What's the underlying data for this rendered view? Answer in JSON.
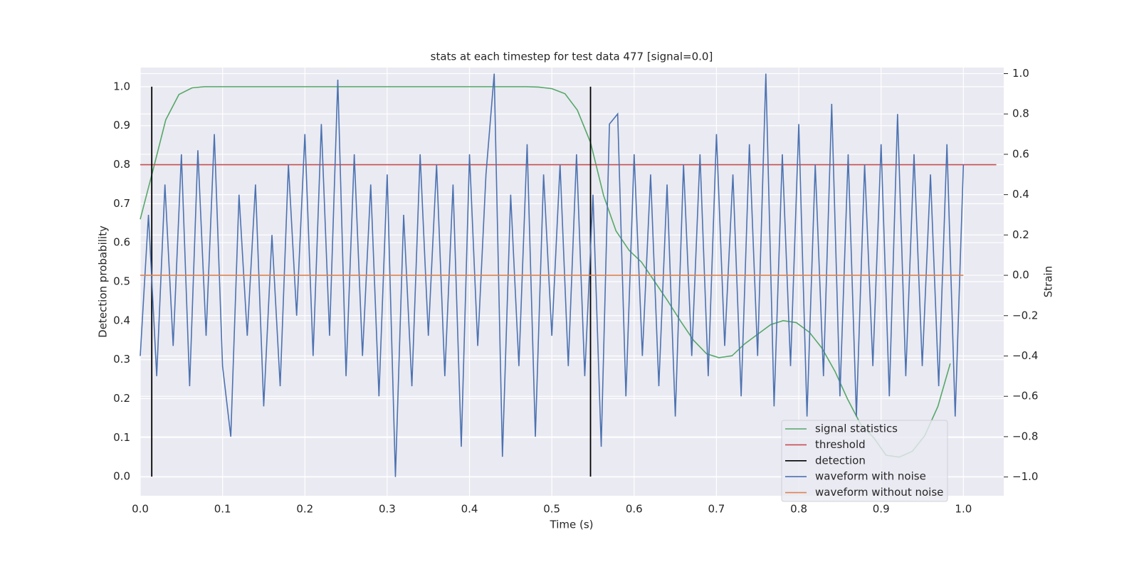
{
  "chart_data": {
    "type": "line",
    "title": "stats at each timestep for test data 477 [signal=0.0]",
    "xlabel": "Time (s)",
    "ylabel": "Detection probability",
    "y2label": "Strain",
    "xlim": [
      0,
      1.049
    ],
    "ylim": [
      -0.049,
      1.049
    ],
    "y2lim": [
      -1.093,
      1.03
    ],
    "xticks": [
      {
        "value": 0,
        "label": "0.0"
      },
      {
        "value": 0.1,
        "label": "0.1"
      },
      {
        "value": 0.2,
        "label": "0.2"
      },
      {
        "value": 0.3,
        "label": "0.3"
      },
      {
        "value": 0.4,
        "label": "0.4"
      },
      {
        "value": 0.5,
        "label": "0.5"
      },
      {
        "value": 0.6,
        "label": "0.6"
      },
      {
        "value": 0.7,
        "label": "0.7"
      },
      {
        "value": 0.8,
        "label": "0.8"
      },
      {
        "value": 0.9,
        "label": "0.9"
      },
      {
        "value": 1,
        "label": "1.0"
      }
    ],
    "yticks": [
      {
        "value": 0,
        "label": "0.0"
      },
      {
        "value": 0.1,
        "label": "0.1"
      },
      {
        "value": 0.2,
        "label": "0.2"
      },
      {
        "value": 0.3,
        "label": "0.3"
      },
      {
        "value": 0.4,
        "label": "0.4"
      },
      {
        "value": 0.5,
        "label": "0.5"
      },
      {
        "value": 0.6,
        "label": "0.6"
      },
      {
        "value": 0.7,
        "label": "0.7"
      },
      {
        "value": 0.8,
        "label": "0.8"
      },
      {
        "value": 0.9,
        "label": "0.9"
      },
      {
        "value": 1,
        "label": "1.0"
      }
    ],
    "y2ticks": [
      {
        "value": -1,
        "label": "−1.0"
      },
      {
        "value": -0.8,
        "label": "−0.8"
      },
      {
        "value": -0.6,
        "label": "−0.6"
      },
      {
        "value": -0.4,
        "label": "−0.4"
      },
      {
        "value": -0.2,
        "label": "−0.2"
      },
      {
        "value": 0,
        "label": "0.0"
      },
      {
        "value": 0.2,
        "label": "0.2"
      },
      {
        "value": 0.4,
        "label": "0.4"
      },
      {
        "value": 0.6,
        "label": "0.6"
      },
      {
        "value": 0.8,
        "label": "0.8"
      },
      {
        "value": 1,
        "label": "1.0"
      }
    ],
    "grid": true,
    "legend": "lower right",
    "series": [
      {
        "name": "signal statistics",
        "color": "#55a868",
        "x": [
          0,
          0.016,
          0.031,
          0.047,
          0.063,
          0.078,
          0.2,
          0.3,
          0.4,
          0.469,
          0.484,
          0.5,
          0.516,
          0.531,
          0.547,
          0.563,
          0.578,
          0.594,
          0.609,
          0.625,
          0.641,
          0.656,
          0.672,
          0.688,
          0.703,
          0.719,
          0.734,
          0.75,
          0.766,
          0.781,
          0.797,
          0.813,
          0.828,
          0.844,
          0.859,
          0.875,
          0.891,
          0.906,
          0.922,
          0.938,
          0.953,
          0.969,
          0.984
        ],
        "values": [
          0.66,
          0.79,
          0.915,
          0.98,
          0.997,
          1.0,
          1.0,
          1.0,
          1.0,
          1.0,
          0.999,
          0.995,
          0.982,
          0.94,
          0.857,
          0.72,
          0.63,
          0.58,
          0.55,
          0.5,
          0.45,
          0.4,
          0.35,
          0.315,
          0.305,
          0.31,
          0.34,
          0.365,
          0.39,
          0.4,
          0.395,
          0.37,
          0.33,
          0.27,
          0.2,
          0.135,
          0.1,
          0.055,
          0.05,
          0.065,
          0.105,
          0.18,
          0.29
        ]
      },
      {
        "name": "threshold",
        "color": "#c44e52",
        "x": [
          0,
          1.04
        ],
        "values": [
          0.8,
          0.8
        ]
      },
      {
        "name": "detection",
        "color": "#000000",
        "type": "vlines",
        "x": [
          0.014,
          0.547
        ],
        "ymin": [
          0,
          0
        ],
        "ymax": [
          1,
          1
        ]
      },
      {
        "name": "waveform with noise",
        "color": "#4c72b0",
        "axis": "y2",
        "x": [
          0,
          0.01,
          0.02,
          0.03,
          0.04,
          0.05,
          0.06,
          0.07,
          0.08,
          0.09,
          0.1,
          0.11,
          0.12,
          0.13,
          0.14,
          0.15,
          0.16,
          0.17,
          0.18,
          0.19,
          0.2,
          0.21,
          0.22,
          0.23,
          0.24,
          0.25,
          0.26,
          0.27,
          0.28,
          0.29,
          0.3,
          0.31,
          0.32,
          0.33,
          0.34,
          0.35,
          0.36,
          0.37,
          0.38,
          0.39,
          0.4,
          0.41,
          0.42,
          0.43,
          0.44,
          0.45,
          0.46,
          0.47,
          0.48,
          0.49,
          0.5,
          0.51,
          0.52,
          0.53,
          0.54,
          0.55,
          0.56,
          0.57,
          0.58,
          0.59,
          0.6,
          0.61,
          0.62,
          0.63,
          0.64,
          0.65,
          0.66,
          0.67,
          0.68,
          0.69,
          0.7,
          0.71,
          0.72,
          0.73,
          0.74,
          0.75,
          0.76,
          0.77,
          0.78,
          0.79,
          0.8,
          0.81,
          0.82,
          0.83,
          0.84,
          0.85,
          0.86,
          0.87,
          0.88,
          0.89,
          0.9,
          0.91,
          0.92,
          0.93,
          0.94,
          0.95,
          0.96,
          0.97,
          0.98,
          0.99,
          1.0
        ],
        "values": [
          -0.4,
          0.3,
          -0.5,
          0.45,
          -0.35,
          0.6,
          -0.55,
          0.62,
          -0.3,
          0.7,
          -0.45,
          -0.8,
          0.4,
          -0.3,
          0.45,
          -0.65,
          0.2,
          -0.55,
          0.55,
          -0.2,
          0.7,
          -0.4,
          0.75,
          -0.3,
          0.97,
          -0.5,
          0.6,
          -0.4,
          0.45,
          -0.6,
          0.5,
          -1.0,
          0.3,
          -0.55,
          0.6,
          -0.3,
          0.55,
          -0.5,
          0.45,
          -0.85,
          0.6,
          -0.35,
          0.5,
          1.0,
          -0.9,
          0.4,
          -0.45,
          0.65,
          -0.8,
          0.5,
          -0.3,
          0.55,
          -0.45,
          0.6,
          -0.5,
          0.4,
          -0.85,
          0.75,
          0.8,
          -0.6,
          0.6,
          -0.4,
          0.5,
          -0.55,
          0.45,
          -0.7,
          0.55,
          -0.4,
          0.6,
          -0.5,
          0.7,
          -0.35,
          0.5,
          -0.6,
          0.65,
          -0.4,
          1.0,
          -0.65,
          0.6,
          -0.45,
          0.75,
          -0.7,
          0.55,
          -0.5,
          0.85,
          -0.6,
          0.6,
          -0.7,
          0.55,
          -0.45,
          0.65,
          -0.6,
          0.8,
          -0.5,
          0.6,
          -0.45,
          0.5,
          -0.55,
          0.65,
          -0.7,
          0.55
        ]
      },
      {
        "name": "waveform without noise",
        "color": "#dd8452",
        "axis": "y2",
        "x": [
          0,
          1.0
        ],
        "values": [
          0,
          0
        ]
      }
    ]
  }
}
